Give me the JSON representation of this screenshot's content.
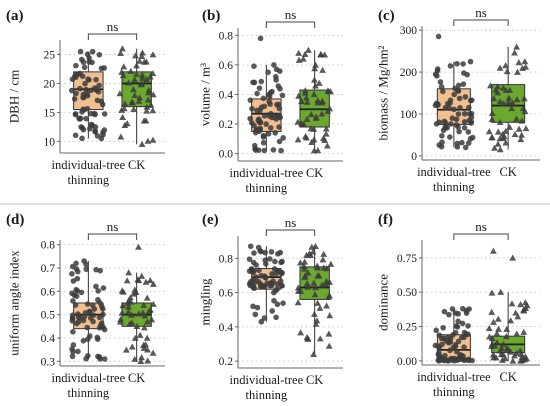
{
  "colors": {
    "thinning": "#f2bf91",
    "ck": "#6aa82f",
    "points": "#3c3c3c"
  },
  "chart_data": [
    {
      "panel": "(a)",
      "type": "box",
      "ylabel": "DBH / cm",
      "categories": [
        "individual-tree\nthinning",
        "CK"
      ],
      "ylim": [
        8,
        27.5
      ],
      "yticks": [
        10,
        15,
        20,
        25
      ],
      "grid": true,
      "significance": "ns",
      "series": [
        {
          "stats": {
            "min": 10.5,
            "q1": 15.5,
            "median": 19,
            "q3": 22,
            "max": 25.5
          },
          "marker": "circle",
          "n": 70
        },
        {
          "stats": {
            "min": 9.5,
            "q1": 16,
            "median": 20,
            "q3": 22,
            "max": 26
          },
          "marker": "triangle",
          "n": 50
        }
      ]
    },
    {
      "panel": "(b)",
      "type": "box",
      "ylabel": "volume / m³",
      "categories": [
        "individual-tree\nthinning",
        "CK"
      ],
      "ylim": [
        -0.05,
        0.85
      ],
      "yticks": [
        0.0,
        0.2,
        0.4,
        0.6,
        0.8
      ],
      "grid": true,
      "significance": "ns",
      "series": [
        {
          "stats": {
            "min": 0.02,
            "q1": 0.15,
            "median": 0.27,
            "q3": 0.37,
            "max": 0.6
          },
          "marker": "circle",
          "n": 70,
          "outliers": [
            0.78
          ]
        },
        {
          "stats": {
            "min": 0.02,
            "q1": 0.18,
            "median": 0.3,
            "q3": 0.43,
            "max": 0.7
          },
          "marker": "triangle",
          "n": 50
        }
      ]
    },
    {
      "panel": "(c)",
      "type": "box",
      "ylabel": "biomass / Mg/hm²",
      "categories": [
        "individual-tree\nthinning",
        "CK"
      ],
      "ylim": [
        -10,
        310
      ],
      "yticks": [
        0,
        100,
        200,
        300
      ],
      "grid": true,
      "significance": "ns",
      "series": [
        {
          "stats": {
            "min": 20,
            "q1": 75,
            "median": 110,
            "q3": 160,
            "max": 225
          },
          "marker": "circle",
          "n": 70,
          "outliers": [
            285
          ]
        },
        {
          "stats": {
            "min": 15,
            "q1": 80,
            "median": 120,
            "q3": 170,
            "max": 260
          },
          "marker": "triangle",
          "n": 50
        }
      ]
    },
    {
      "panel": "(d)",
      "type": "box",
      "ylabel": "uniform angle index",
      "categories": [
        "individual-tree\nthinning",
        "CK"
      ],
      "ylim": [
        0.28,
        0.82
      ],
      "yticks": [
        0.3,
        0.4,
        0.5,
        0.6,
        0.7,
        0.8
      ],
      "grid": true,
      "significance": "ns",
      "series": [
        {
          "stats": {
            "min": 0.31,
            "q1": 0.44,
            "median": 0.5,
            "q3": 0.55,
            "max": 0.73
          },
          "marker": "circle",
          "n": 70
        },
        {
          "stats": {
            "min": 0.3,
            "q1": 0.45,
            "median": 0.5,
            "q3": 0.55,
            "max": 0.68
          },
          "marker": "triangle",
          "n": 50,
          "outliers": [
            0.79
          ]
        }
      ]
    },
    {
      "panel": "(e)",
      "type": "box",
      "ylabel": "mingling",
      "categories": [
        "individual-tree\nthinning",
        "CK"
      ],
      "ylim": [
        0.16,
        0.93
      ],
      "yticks": [
        0.2,
        0.4,
        0.6,
        0.8
      ],
      "grid": true,
      "significance": "ns",
      "series": [
        {
          "stats": {
            "min": 0.43,
            "q1": 0.62,
            "median": 0.69,
            "q3": 0.74,
            "max": 0.87
          },
          "marker": "circle",
          "n": 70
        },
        {
          "stats": {
            "min": 0.24,
            "q1": 0.56,
            "median": 0.63,
            "q3": 0.75,
            "max": 0.87
          },
          "marker": "triangle",
          "n": 50
        }
      ]
    },
    {
      "panel": "(f)",
      "type": "box",
      "ylabel": "dominance",
      "categories": [
        "individual-tree\nthinning",
        "CK"
      ],
      "ylim": [
        -0.03,
        0.88
      ],
      "yticks": [
        0.0,
        0.25,
        0.5,
        0.75
      ],
      "grid": true,
      "significance": "ns",
      "series": [
        {
          "stats": {
            "min": 0.0,
            "q1": 0.02,
            "median": 0.08,
            "q3": 0.19,
            "max": 0.38
          },
          "marker": "circle",
          "n": 70
        },
        {
          "stats": {
            "min": 0.0,
            "q1": 0.06,
            "median": 0.12,
            "q3": 0.18,
            "max": 0.5
          },
          "marker": "triangle",
          "n": 50,
          "outliers": [
            0.75,
            0.8
          ]
        }
      ]
    }
  ]
}
